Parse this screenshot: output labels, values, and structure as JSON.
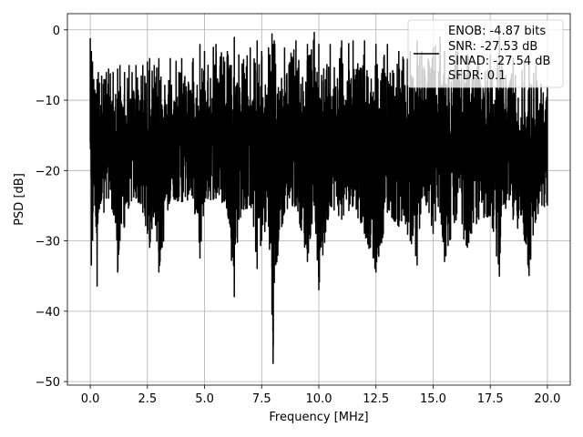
{
  "chart_data": {
    "type": "line",
    "title": "",
    "xlabel": "Frequency [MHz]",
    "ylabel": "PSD [dB]",
    "xlim": [
      -1.0,
      21.0
    ],
    "ylim": [
      -50.5,
      2.3
    ],
    "xticks": [
      0.0,
      2.5,
      5.0,
      7.5,
      10.0,
      12.5,
      15.0,
      17.5,
      20.0
    ],
    "xtick_labels": [
      "0.0",
      "2.5",
      "5.0",
      "7.5",
      "10.0",
      "12.5",
      "15.0",
      "17.5",
      "20.0"
    ],
    "yticks": [
      0,
      -10,
      -20,
      -30,
      -40,
      -50
    ],
    "ytick_labels": [
      "0",
      "−10",
      "−20",
      "−30",
      "−40",
      "−50"
    ],
    "grid": true,
    "legend_position": "top-right",
    "legend": {
      "entries": [
        "ENOB: -4.87 bits",
        "SNR: -27.53 dB",
        "SINAD: -27.54 dB",
        "SFDR: 0.1"
      ]
    },
    "series": [
      {
        "color": "#000000",
        "x": [
          0.0,
          0.05,
          0.1,
          0.15,
          0.2,
          0.25,
          0.3,
          0.35,
          0.4,
          0.5,
          0.6,
          0.7,
          0.8,
          1.0,
          1.2,
          1.3,
          1.5,
          1.7,
          2.0,
          2.3,
          2.5,
          2.6,
          2.8,
          3.0,
          3.5,
          4.0,
          4.5,
          4.8,
          5.0,
          5.5,
          6.0,
          6.3,
          6.5,
          7.0,
          7.3,
          7.5,
          7.8,
          7.95,
          8.0,
          8.05,
          8.5,
          9.0,
          9.5,
          9.8,
          10.0,
          10.5,
          11.0,
          11.5,
          12.0,
          12.5,
          13.0,
          13.5,
          14.0,
          14.3,
          14.5,
          15.0,
          15.3,
          15.5,
          16.0,
          16.5,
          17.0,
          17.5,
          17.9,
          18.0,
          18.5,
          19.0,
          19.2,
          19.5,
          20.0
        ],
        "y_max": [
          -1.2,
          -3.0,
          -4.5,
          -7.0,
          -8.5,
          -9.0,
          -7.0,
          -6.0,
          -7.5,
          -6.5,
          -7.0,
          -6.0,
          -5.5,
          -6.0,
          -5.5,
          -5.0,
          -6.0,
          -5.0,
          -5.0,
          -5.0,
          -4.5,
          -4.0,
          -5.0,
          -4.0,
          -4.0,
          -4.0,
          -4.0,
          -2.0,
          -3.0,
          -2.0,
          -3.0,
          -1.0,
          -3.5,
          -2.5,
          -1.5,
          -3.0,
          -2.5,
          -0.5,
          -2.0,
          -1.5,
          -2.5,
          -1.5,
          -2.0,
          -0.3,
          -2.0,
          -2.0,
          -1.5,
          -1.5,
          -1.5,
          -2.0,
          -2.0,
          -3.0,
          -3.0,
          -1.5,
          -3.0,
          -2.5,
          -1.0,
          -3.0,
          -3.0,
          -3.5,
          -3.5,
          -3.5,
          -0.8,
          -4.0,
          -4.0,
          -4.5,
          -4.0,
          -5.0,
          -8.0
        ],
        "y_min": [
          -16.0,
          -33.5,
          -30.0,
          -22.0,
          -25.0,
          -28.0,
          -36.5,
          -26.0,
          -25.5,
          -24.0,
          -26.0,
          -24.0,
          -24.0,
          -26.0,
          -34.5,
          -30.0,
          -28.0,
          -25.0,
          -24.0,
          -26.0,
          -29.0,
          -31.0,
          -26.0,
          -34.5,
          -24.0,
          -24.5,
          -24.0,
          -32.5,
          -24.5,
          -24.0,
          -25.5,
          -38.0,
          -27.0,
          -25.0,
          -34.0,
          -30.0,
          -28.0,
          -40.5,
          -47.5,
          -36.0,
          -26.0,
          -25.0,
          -33.0,
          -25.0,
          -37.0,
          -25.0,
          -27.0,
          -25.0,
          -29.0,
          -34.5,
          -26.0,
          -28.0,
          -30.0,
          -33.5,
          -24.0,
          -29.0,
          -26.0,
          -33.0,
          -27.0,
          -31.0,
          -27.0,
          -26.5,
          -35.0,
          -25.0,
          -27.0,
          -30.0,
          -35.0,
          -27.0,
          -25.0
        ]
      }
    ]
  }
}
